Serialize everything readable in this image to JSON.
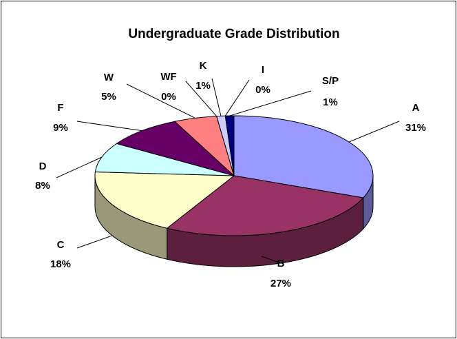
{
  "chart_data": {
    "type": "pie",
    "title": "Undergraduate Grade Distribution",
    "categories": [
      "A",
      "B",
      "C",
      "D",
      "F",
      "W",
      "WF",
      "K",
      "I",
      "S/P"
    ],
    "values": [
      31,
      27,
      18,
      8,
      9,
      5,
      0,
      1,
      0,
      1
    ],
    "value_labels": [
      "31%",
      "27%",
      "18%",
      "8%",
      "9%",
      "5%",
      "0%",
      "1%",
      "0%",
      "1%"
    ],
    "colors": [
      "#9999ff",
      "#993366",
      "#ffffcc",
      "#ccffff",
      "#660066",
      "#ff8080",
      "#0066cc",
      "#ccccff",
      "#000080",
      "#000080"
    ]
  }
}
